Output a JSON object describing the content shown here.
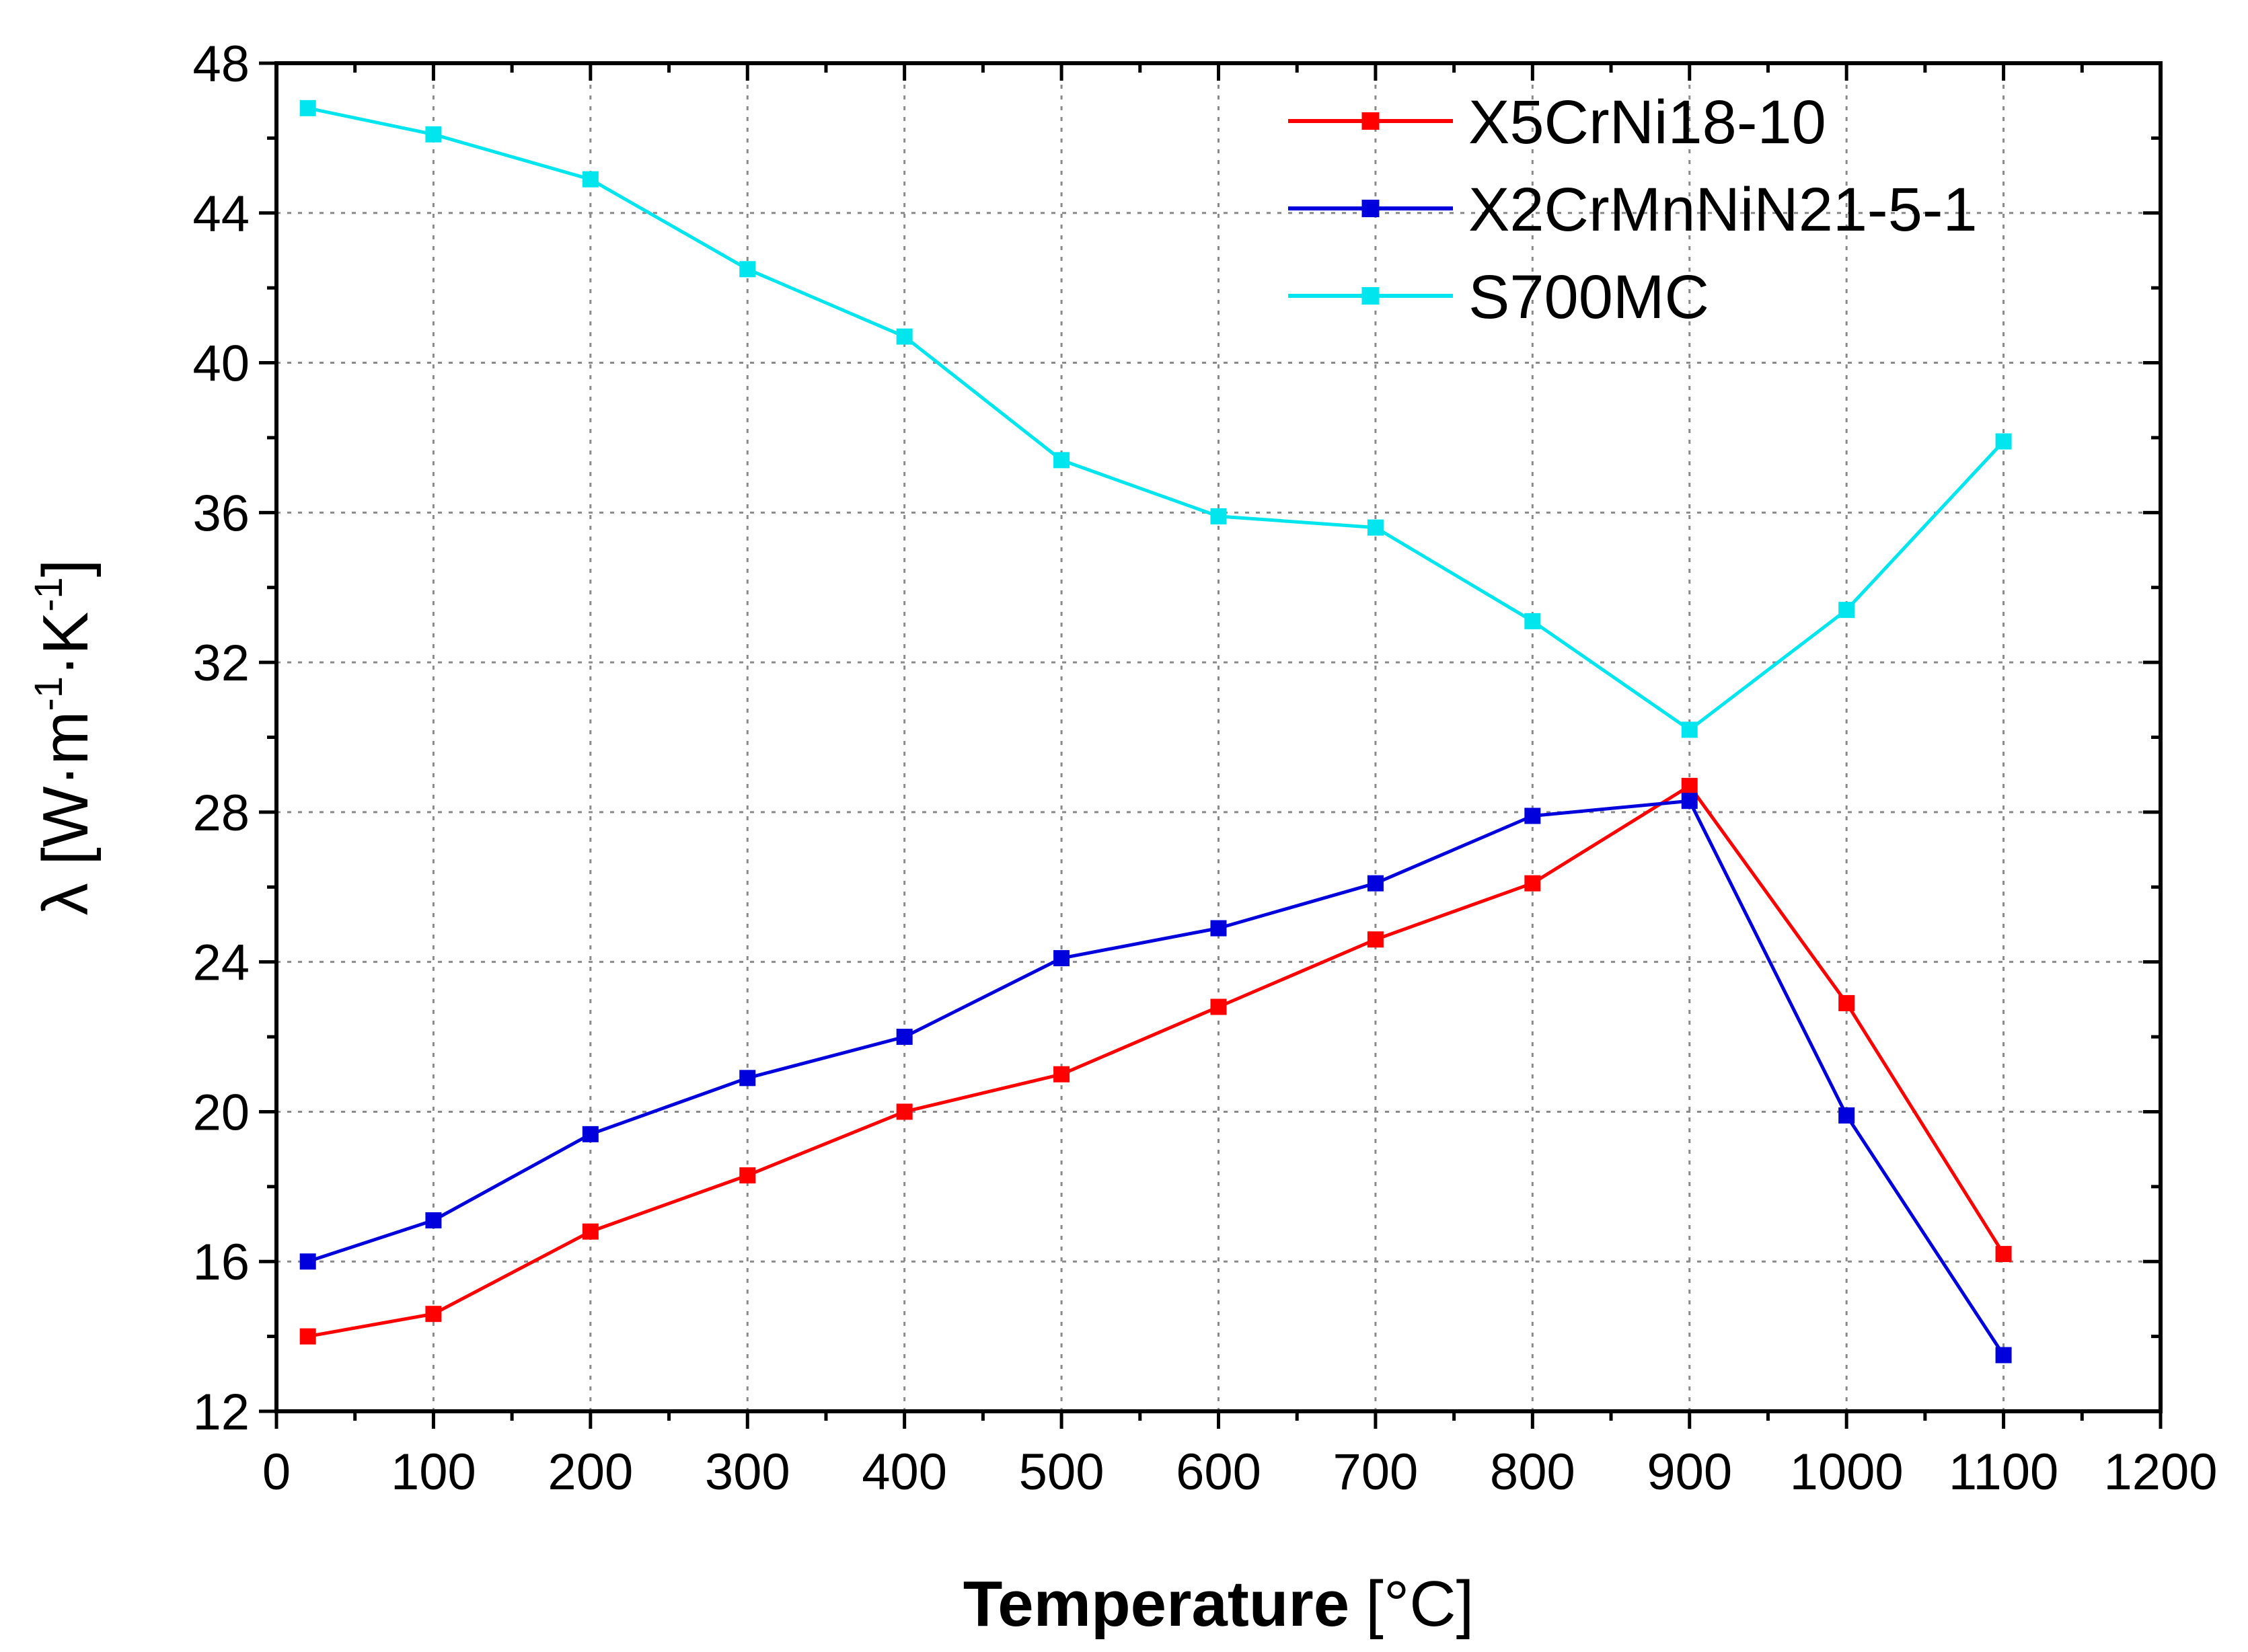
{
  "chart_data": {
    "type": "line",
    "title": "",
    "xlabel_bold": "Temperature",
    "xlabel_unit": "[°C]",
    "ylabel_prefix": "λ [W·m",
    "ylabel_exp1": "-1",
    "ylabel_mid": "·K",
    "ylabel_exp2": "-1",
    "ylabel_suffix": "]",
    "xlim": [
      0,
      1200
    ],
    "ylim": [
      12,
      48
    ],
    "xticks": [
      0,
      100,
      200,
      300,
      400,
      500,
      600,
      700,
      800,
      900,
      1000,
      1100,
      1200
    ],
    "yticks": [
      12,
      16,
      20,
      24,
      28,
      32,
      36,
      40,
      44,
      48
    ],
    "grid": true,
    "legend_position": "top-right",
    "x": [
      20,
      100,
      200,
      300,
      400,
      500,
      600,
      700,
      800,
      900,
      1000,
      1100
    ],
    "series": [
      {
        "name": "X5CrNi18-10",
        "color": "#ff0000",
        "values": [
          14.0,
          14.6,
          16.8,
          18.3,
          20.0,
          21.0,
          22.8,
          24.6,
          26.1,
          28.7,
          22.9,
          16.2
        ]
      },
      {
        "name": "X2CrMnNiN21-5-1",
        "color": "#0000dd",
        "values": [
          16.0,
          17.1,
          19.4,
          20.9,
          22.0,
          24.1,
          24.9,
          26.1,
          27.9,
          28.3,
          19.9,
          13.5
        ]
      },
      {
        "name": "S700MC",
        "color": "#00e5ee",
        "values": [
          46.8,
          46.1,
          44.9,
          42.5,
          40.7,
          37.4,
          35.9,
          35.6,
          33.1,
          30.2,
          33.4,
          37.9
        ]
      }
    ]
  }
}
